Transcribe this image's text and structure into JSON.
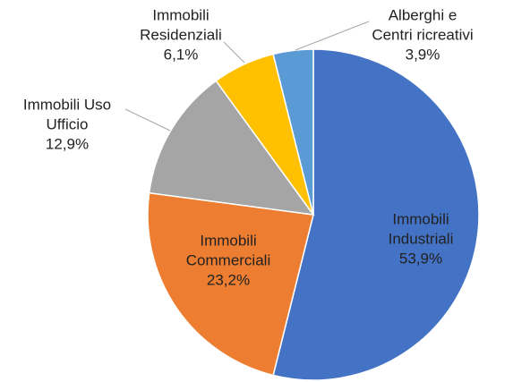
{
  "chart_data": {
    "type": "pie",
    "categories": [
      [
        "Immobili",
        "Industriali"
      ],
      [
        "Immobili",
        "Commerciali"
      ],
      [
        "Immobili Uso",
        "Ufficio"
      ],
      [
        "Immobili",
        "Residenziali"
      ],
      [
        "Alberghi e",
        "Centri ricreativi"
      ]
    ],
    "values": [
      53.9,
      23.2,
      12.9,
      6.1,
      3.9
    ],
    "value_labels": [
      "53,9%",
      "23,2%",
      "12,9%",
      "6,1%",
      "3,9%"
    ],
    "colors": [
      "#4472c4",
      "#ed7d31",
      "#a5a5a5",
      "#ffc000",
      "#5b9bd5"
    ]
  }
}
